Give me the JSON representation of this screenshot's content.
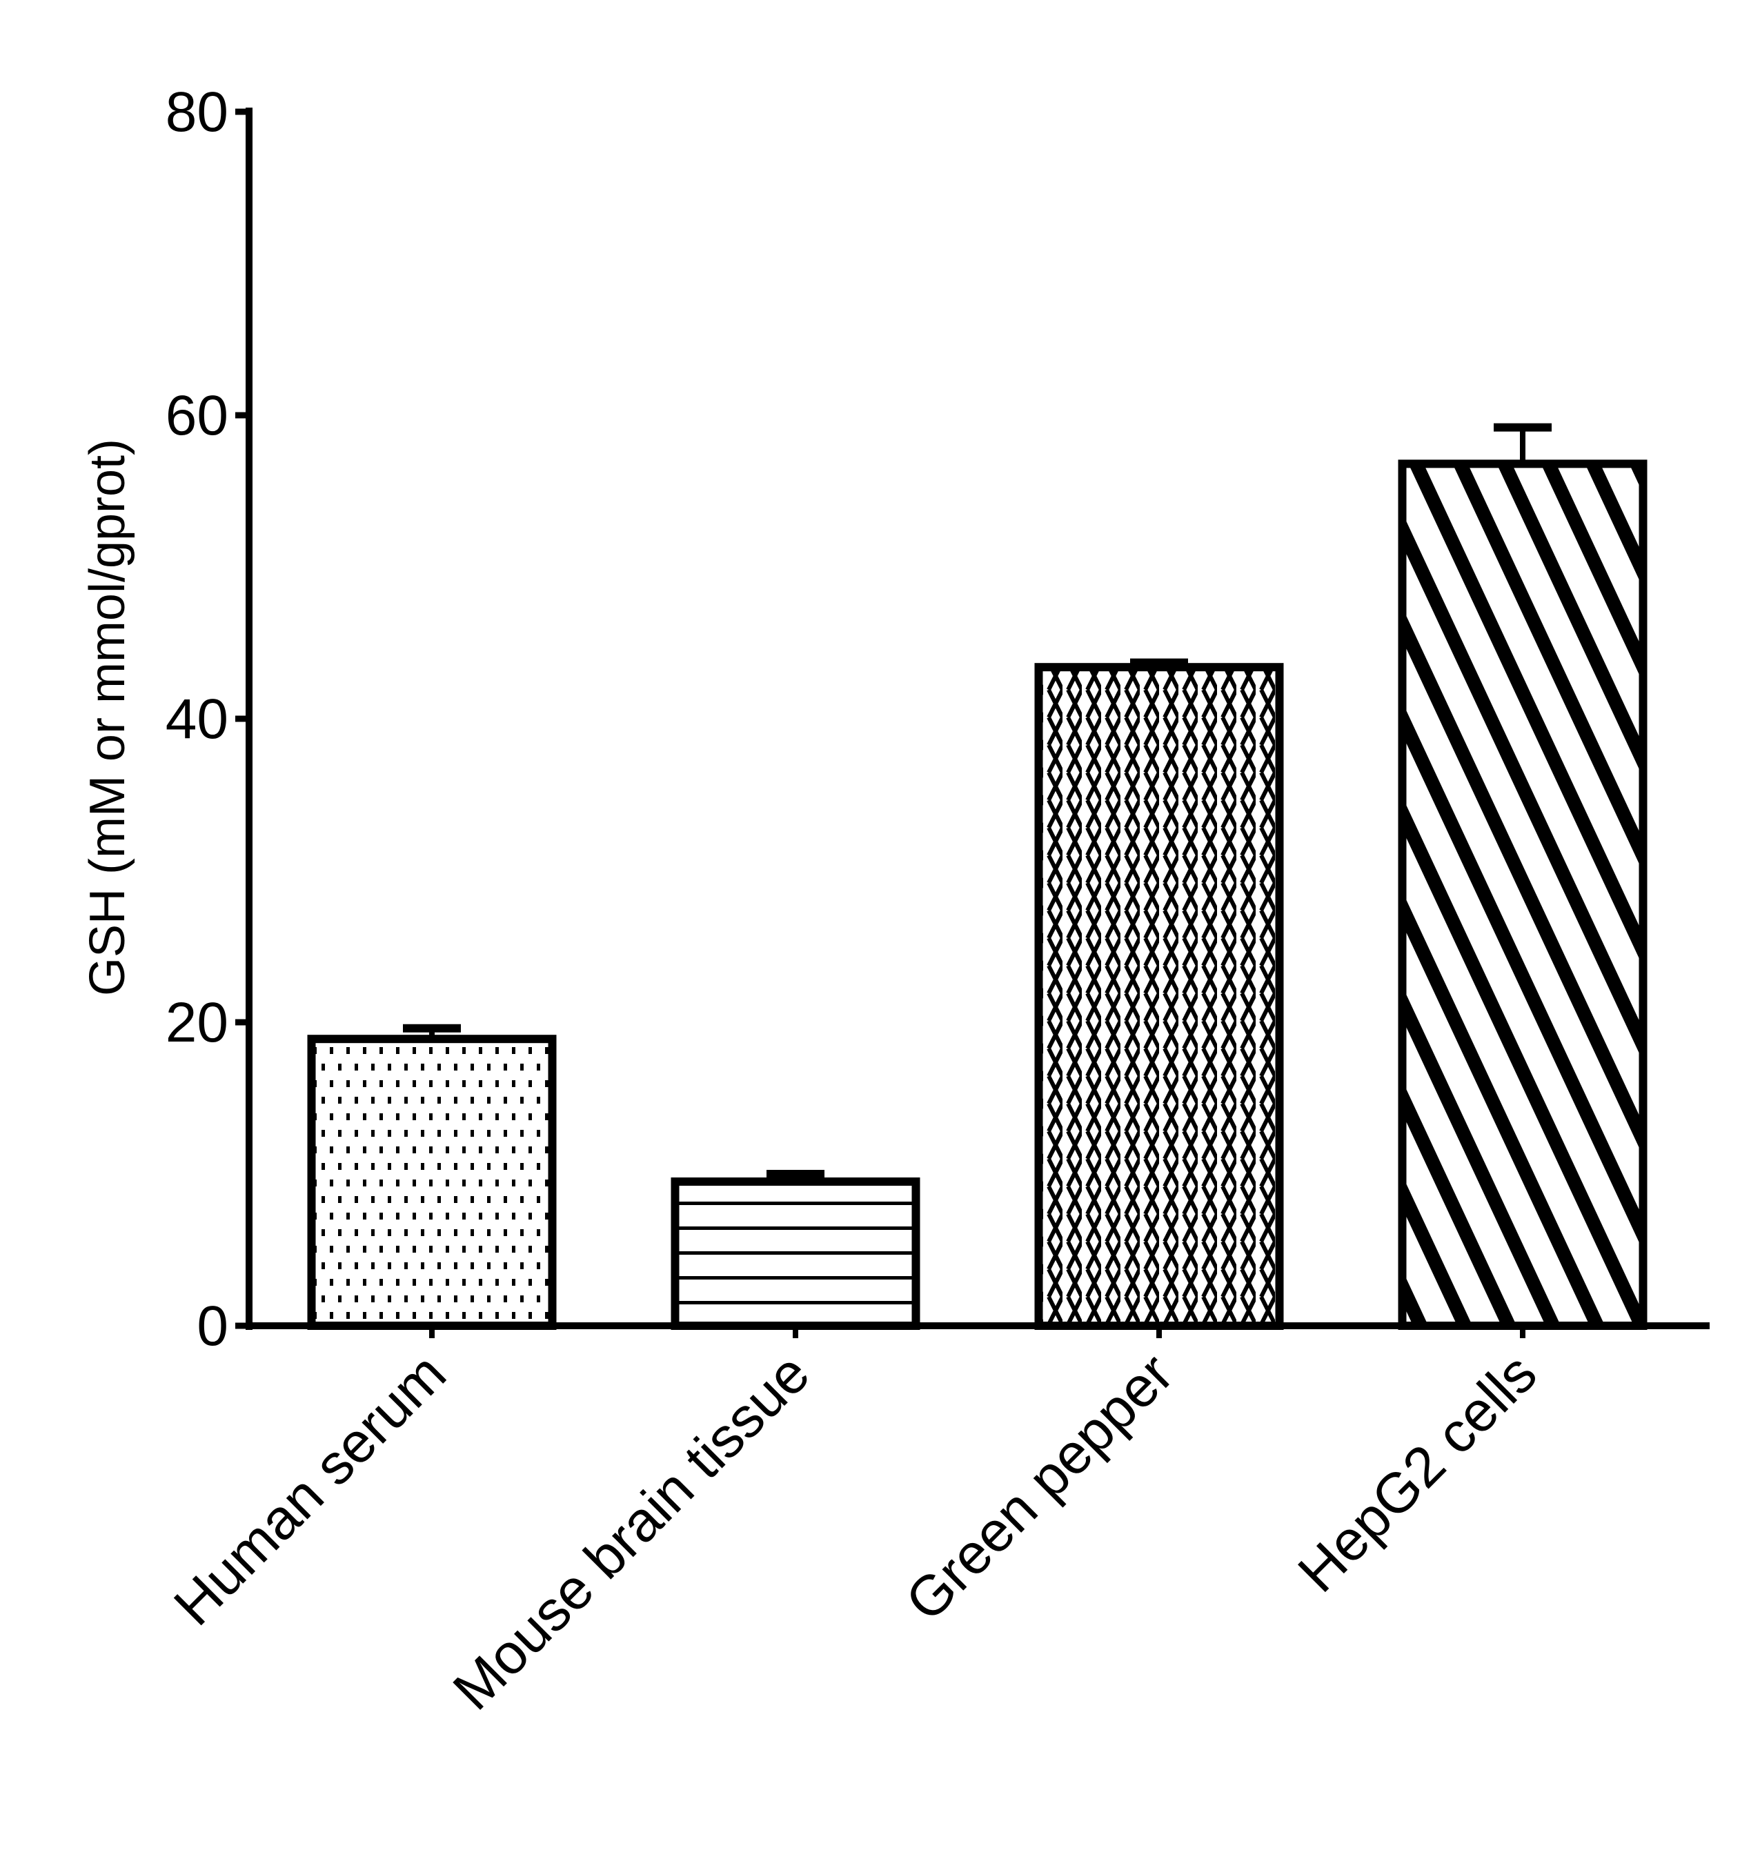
{
  "chart_data": {
    "type": "bar",
    "title": "",
    "xlabel": "",
    "ylabel": "GSH (mM or mmol/gprot)",
    "ylim": [
      0,
      80
    ],
    "yticks": [
      0,
      20,
      40,
      60,
      80
    ],
    "grid": false,
    "categories": [
      "Human serum",
      "Mouse brain tissue",
      "Green pepper",
      "HepG2 cells"
    ],
    "values": [
      18.9,
      9.5,
      43.4,
      56.8
    ],
    "errors": [
      0.7,
      0.5,
      0.3,
      2.4
    ],
    "fill_patterns": [
      "dots",
      "horizontal-lines",
      "crosshatch",
      "diagonal-stripes"
    ],
    "colors": {
      "stroke": "#000000",
      "fill": "#ffffff"
    }
  }
}
